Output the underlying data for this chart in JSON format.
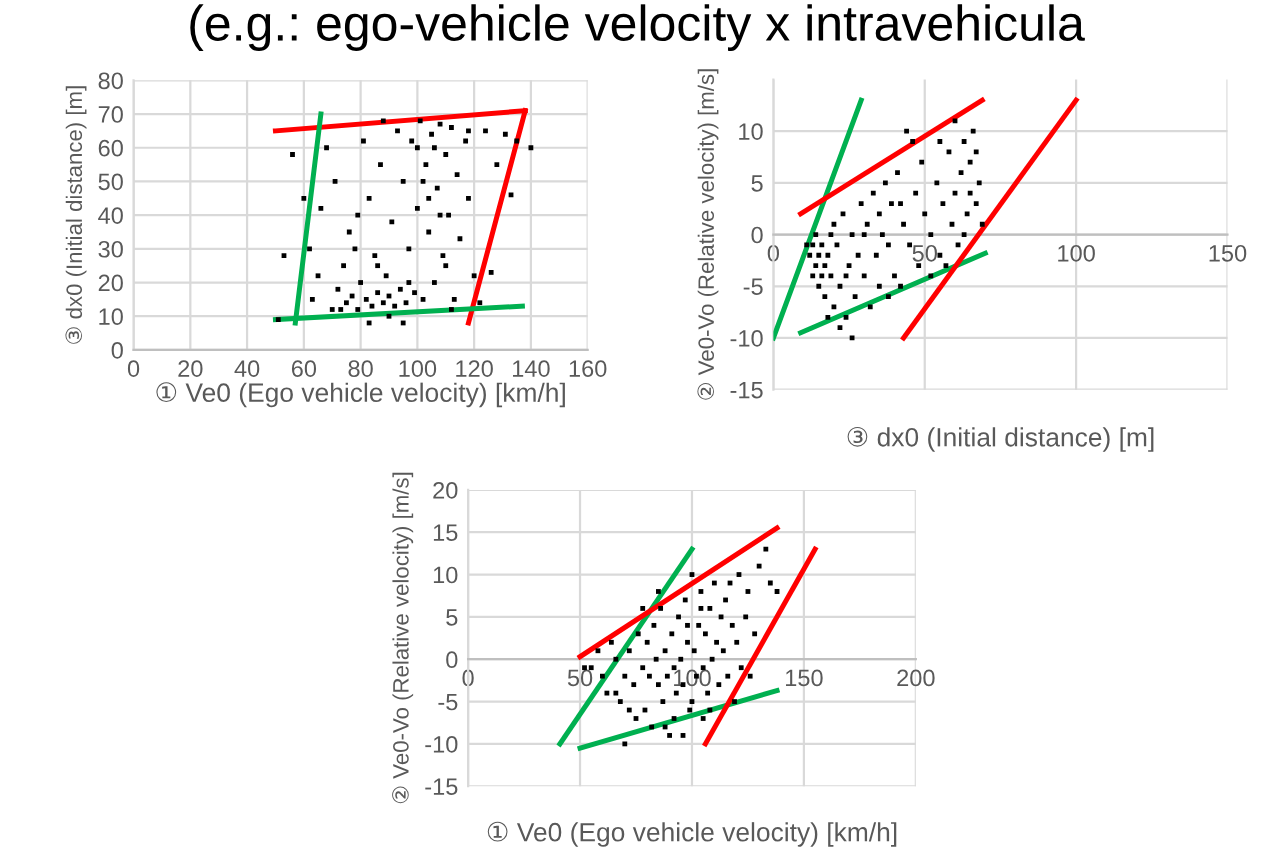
{
  "chart_data": [
    {
      "type": "scatter",
      "title": "(e.g.: ego-vehicle velocity x intravehicula",
      "xlabel": "① Ve0 (Ego vehicle velocity) [km/h]",
      "ylabel": "③ dx0 (Initial distance) [m]",
      "xlim": [
        0,
        160
      ],
      "xticks": [
        0,
        20,
        40,
        60,
        80,
        100,
        120,
        140,
        160
      ],
      "ylim": [
        0,
        80
      ],
      "yticks": [
        0,
        10,
        20,
        30,
        40,
        50,
        60,
        70,
        80
      ],
      "grid": true,
      "legend": false,
      "series": [
        {
          "marker": "square",
          "color": "#000000",
          "x": [
            51,
            53,
            60,
            63,
            65,
            68,
            70,
            72,
            74,
            75,
            77,
            78,
            79,
            80,
            82,
            83,
            84,
            85,
            86,
            87,
            88,
            89,
            90,
            91,
            92,
            93,
            94,
            95,
            96,
            97,
            98,
            99,
            100,
            101,
            102,
            103,
            104,
            105,
            106,
            107,
            108,
            109,
            110,
            111,
            112,
            113,
            114,
            115,
            117,
            118,
            120,
            122,
            124,
            126,
            131,
            135,
            140,
            56,
            62,
            66,
            71,
            76,
            81,
            83,
            88,
            90,
            95,
            104,
            106,
            108,
            110,
            97,
            86,
            79,
            73,
            100,
            102,
            112,
            118,
            128,
            133
          ],
          "values": [
            9,
            28,
            45,
            15,
            22,
            60,
            12,
            18,
            25,
            14,
            16,
            30,
            12,
            20,
            15,
            45,
            13,
            28,
            17,
            55,
            14,
            22,
            16,
            38,
            13,
            65,
            18,
            50,
            14,
            30,
            62,
            17,
            42,
            68,
            15,
            55,
            35,
            64,
            20,
            48,
            67,
            28,
            58,
            40,
            66,
            15,
            52,
            33,
            62,
            45,
            22,
            14,
            65,
            23,
            64,
            62,
            60,
            58,
            30,
            42,
            50,
            35,
            62,
            8,
            68,
            10,
            8,
            45,
            60,
            40,
            25,
            20,
            25,
            40,
            12,
            60,
            50,
            12,
            65,
            55,
            46
          ]
        },
        {
          "type": "line",
          "color": "#ff0000",
          "x": [
            50,
            138
          ],
          "values": [
            65,
            71
          ]
        },
        {
          "type": "line",
          "color": "#ff0000",
          "x": [
            138,
            118
          ],
          "values": [
            71,
            8
          ]
        },
        {
          "type": "line",
          "color": "#00b050",
          "x": [
            57,
            66
          ],
          "values": [
            8,
            70
          ]
        },
        {
          "type": "line",
          "color": "#00b050",
          "x": [
            50,
            137
          ],
          "values": [
            9,
            13
          ]
        }
      ]
    },
    {
      "type": "scatter",
      "xlabel": "③ dx0 (Initial distance) [m]",
      "ylabel": "② Ve0-Vo (Relative velocity) [m/s]",
      "xlim": [
        0,
        150
      ],
      "xticks": [
        0,
        50,
        100,
        150
      ],
      "ylim": [
        -15,
        15
      ],
      "yticks": [
        -15,
        -10,
        -5,
        0,
        5,
        10
      ],
      "grid": true,
      "legend": false,
      "series": [
        {
          "marker": "square",
          "color": "#000000",
          "x": [
            12,
            13,
            14,
            15,
            16,
            14,
            16,
            17,
            18,
            13,
            15,
            17,
            19,
            20,
            22,
            24,
            25,
            27,
            28,
            30,
            32,
            35,
            38,
            40,
            42,
            22,
            26,
            18,
            20,
            23,
            26,
            29,
            31,
            33,
            35,
            37,
            39,
            41,
            43,
            45,
            47,
            49,
            50,
            52,
            54,
            55,
            56,
            58,
            59,
            60,
            61,
            62,
            63,
            64,
            65,
            66,
            67,
            68,
            69,
            67,
            65,
            63,
            44,
            46,
            55,
            60,
            38,
            34,
            48,
            52,
            57,
            21,
            11,
            19,
            24,
            30,
            36,
            42
          ],
          "values": [
            -2,
            -1,
            -3,
            -2,
            -4,
            0,
            -1,
            -3,
            -2,
            -4,
            -5,
            -6,
            -4,
            -7,
            -5,
            -8,
            -3,
            -6,
            -2,
            -4,
            -7,
            -5,
            -6,
            -4,
            -5,
            -9,
            -10,
            -8,
            1,
            2,
            0,
            3,
            1,
            4,
            2,
            5,
            3,
            6,
            1,
            -1,
            4,
            7,
            2,
            0,
            5,
            -2,
            3,
            8,
            1,
            4,
            -1,
            6,
            9,
            2,
            7,
            10,
            3,
            5,
            1,
            8,
            4,
            0,
            10,
            9,
            9,
            11,
            -1,
            -2,
            -3,
            -4,
            -3,
            -1,
            -1,
            0,
            -4,
            0,
            0,
            3
          ]
        },
        {
          "type": "line",
          "color": "#00b050",
          "x": [
            0,
            29
          ],
          "values": [
            -10,
            13
          ]
        },
        {
          "type": "line",
          "color": "#ff0000",
          "x": [
            9,
            69
          ],
          "values": [
            2,
            13
          ]
        },
        {
          "type": "line",
          "color": "#00b050",
          "x": [
            9,
            70
          ],
          "values": [
            -9.5,
            -1.8
          ]
        },
        {
          "type": "line",
          "color": "#ff0000",
          "x": [
            43,
            100
          ],
          "values": [
            -10,
            13
          ]
        }
      ]
    },
    {
      "type": "scatter",
      "xlabel": "① Ve0 (Ego vehicle velocity) [km/h]",
      "ylabel": "② Ve0-Vo (Relative velocity) [m/s]",
      "xlim": [
        0,
        200
      ],
      "xticks": [
        0,
        50,
        100,
        150,
        200
      ],
      "ylim": [
        -15,
        20
      ],
      "yticks": [
        -15,
        -10,
        -5,
        0,
        5,
        10,
        15,
        20
      ],
      "grid": true,
      "legend": false,
      "series": [
        {
          "marker": "square",
          "color": "#000000",
          "x": [
            52,
            55,
            58,
            60,
            62,
            64,
            66,
            68,
            70,
            70,
            72,
            74,
            75,
            76,
            78,
            79,
            80,
            81,
            82,
            83,
            84,
            85,
            86,
            87,
            88,
            89,
            90,
            91,
            92,
            93,
            94,
            95,
            96,
            97,
            98,
            99,
            100,
            101,
            102,
            103,
            104,
            105,
            106,
            107,
            108,
            109,
            110,
            111,
            112,
            113,
            114,
            115,
            116,
            118,
            119,
            120,
            121,
            122,
            124,
            126,
            128,
            130,
            133,
            135,
            138,
            85,
            78,
            92,
            100,
            105,
            96,
            88,
            104,
            98,
            108,
            117,
            125,
            72,
            66
          ],
          "values": [
            -1,
            -1,
            1,
            -2,
            -4,
            2,
            0,
            -5,
            -2,
            -10,
            1,
            -3,
            -7,
            3,
            -1,
            -6,
            2,
            -2,
            -8,
            4,
            0,
            -3,
            6,
            -5,
            1,
            -2,
            -9,
            3,
            -1,
            -4,
            5,
            0,
            -3,
            7,
            2,
            -6,
            10,
            1,
            -2,
            4,
            8,
            -1,
            3,
            -4,
            6,
            0,
            9,
            2,
            -3,
            5,
            1,
            7,
            -2,
            4,
            -5,
            2,
            10,
            -1,
            5,
            -2,
            3,
            11,
            13,
            9,
            8,
            8,
            6,
            -7,
            -5,
            -7,
            -9,
            -8,
            6,
            4,
            -6,
            9,
            8,
            -6,
            -4
          ]
        },
        {
          "type": "line",
          "color": "#00b050",
          "x": [
            41,
            100
          ],
          "values": [
            -10,
            13
          ]
        },
        {
          "type": "line",
          "color": "#ff0000",
          "x": [
            50,
            138
          ],
          "values": [
            0.3,
            15.5
          ]
        },
        {
          "type": "line",
          "color": "#00b050",
          "x": [
            50,
            138
          ],
          "values": [
            -10.5,
            -3.7
          ]
        },
        {
          "type": "line",
          "color": "#ff0000",
          "x": [
            106,
            155
          ],
          "values": [
            -10,
            13
          ]
        }
      ]
    }
  ]
}
